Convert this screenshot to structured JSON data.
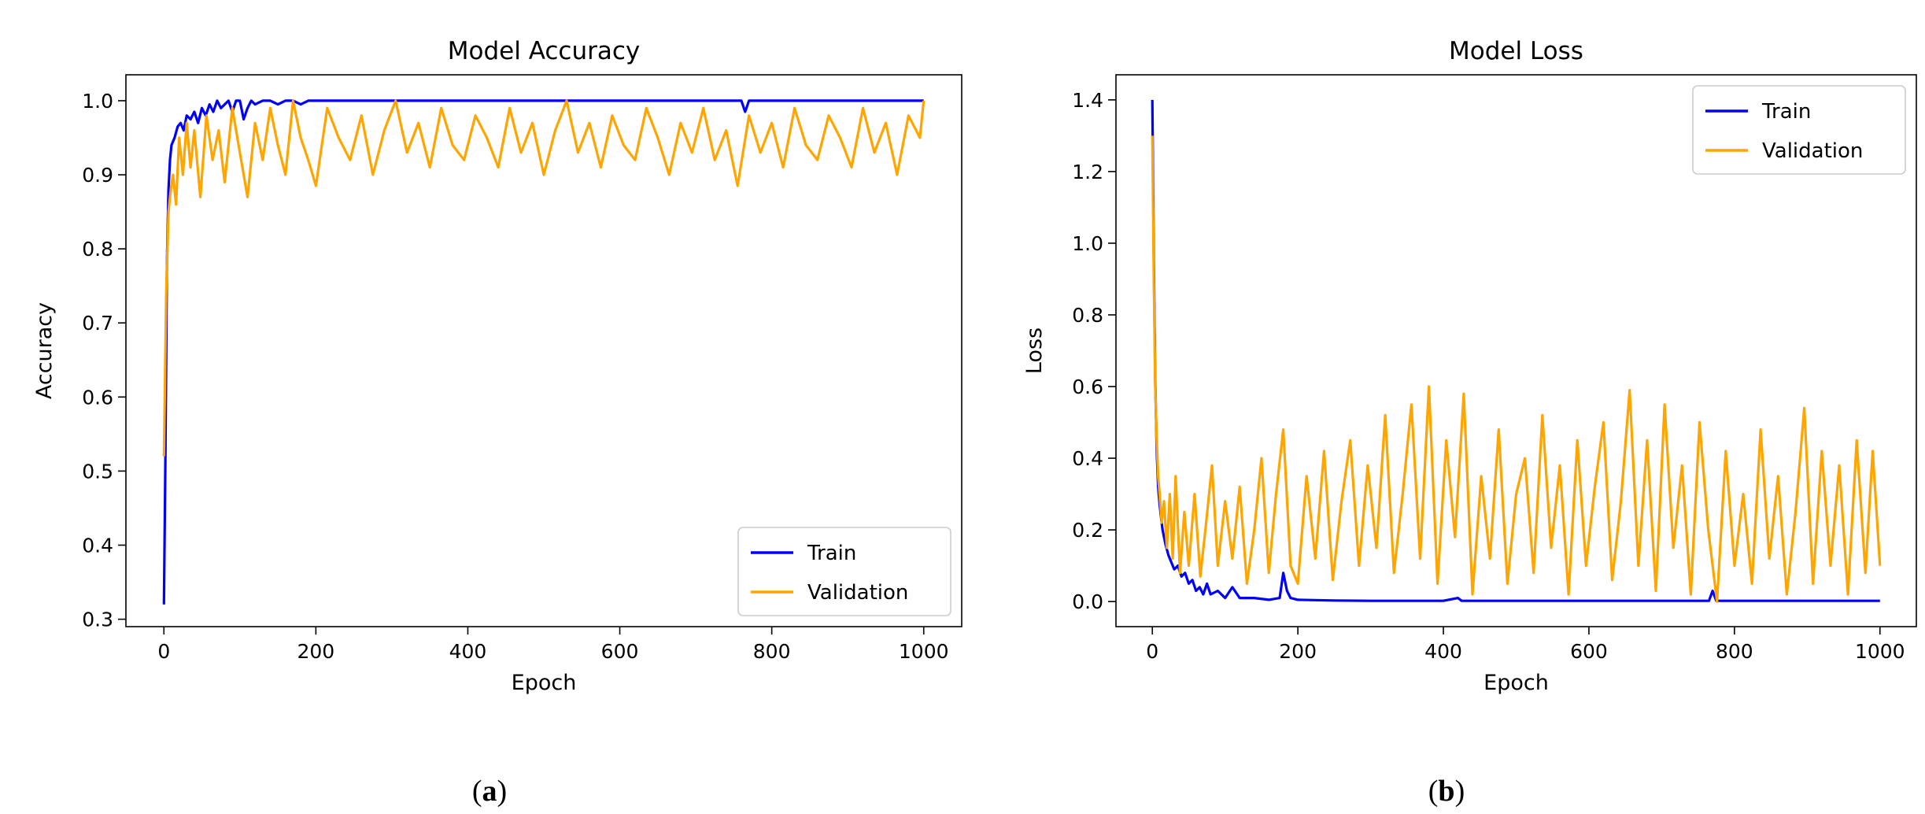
{
  "figure": {
    "caption_a": {
      "open": "(",
      "letter": "a",
      "close": ")"
    },
    "caption_b": {
      "open": "(",
      "letter": "b",
      "close": ")"
    }
  },
  "chart_data": [
    {
      "type": "line",
      "title": "Model Accuracy",
      "xlabel": "Epoch",
      "ylabel": "Accuracy",
      "xlim": [
        -50,
        1050
      ],
      "ylim": [
        0.29,
        1.035
      ],
      "xticks": [
        0,
        200,
        400,
        600,
        800,
        1000
      ],
      "xtick_labels": [
        "0",
        "200",
        "400",
        "600",
        "800",
        "1000"
      ],
      "yticks": [
        0.3,
        0.4,
        0.5,
        0.6,
        0.7,
        0.8,
        0.9,
        1.0
      ],
      "ytick_labels": [
        "0.3",
        "0.4",
        "0.5",
        "0.6",
        "0.7",
        "0.8",
        "0.9",
        "1.0"
      ],
      "grid": false,
      "legend": "lower-right",
      "colors": {
        "Train": "#0000ff",
        "Validation": "#ffa500"
      },
      "series": [
        {
          "name": "Train",
          "x": [
            0,
            2,
            4,
            6,
            8,
            10,
            14,
            18,
            22,
            26,
            30,
            35,
            40,
            45,
            50,
            55,
            60,
            65,
            70,
            75,
            80,
            85,
            90,
            95,
            100,
            105,
            110,
            115,
            120,
            130,
            140,
            150,
            160,
            170,
            180,
            190,
            200,
            230,
            260,
            300,
            400,
            500,
            600,
            760,
            765,
            770,
            775,
            800,
            900,
            1000
          ],
          "values": [
            0.32,
            0.52,
            0.78,
            0.88,
            0.92,
            0.94,
            0.95,
            0.965,
            0.97,
            0.96,
            0.98,
            0.975,
            0.985,
            0.97,
            0.99,
            0.98,
            0.995,
            0.985,
            1.0,
            0.99,
            0.995,
            1.0,
            0.985,
            1.0,
            1.0,
            0.975,
            0.99,
            1.0,
            0.995,
            1.0,
            1.0,
            0.995,
            1.0,
            1.0,
            0.995,
            1.0,
            1.0,
            1.0,
            1.0,
            1.0,
            1.0,
            1.0,
            1.0,
            1.0,
            0.985,
            1.0,
            1.0,
            1.0,
            1.0,
            1.0
          ]
        },
        {
          "name": "Validation",
          "x": [
            0,
            3,
            6,
            9,
            12,
            16,
            20,
            25,
            30,
            35,
            40,
            48,
            56,
            64,
            72,
            80,
            90,
            100,
            110,
            120,
            130,
            140,
            150,
            160,
            170,
            180,
            190,
            200,
            215,
            230,
            245,
            260,
            275,
            290,
            305,
            320,
            335,
            350,
            365,
            380,
            395,
            410,
            425,
            440,
            455,
            470,
            485,
            500,
            515,
            530,
            545,
            560,
            575,
            590,
            605,
            620,
            635,
            650,
            665,
            680,
            695,
            710,
            725,
            740,
            755,
            770,
            785,
            800,
            815,
            830,
            845,
            860,
            875,
            890,
            905,
            920,
            935,
            950,
            965,
            980,
            995,
            1000
          ],
          "values": [
            0.52,
            0.74,
            0.85,
            0.88,
            0.9,
            0.86,
            0.95,
            0.9,
            0.97,
            0.91,
            0.96,
            0.87,
            0.98,
            0.92,
            0.96,
            0.89,
            0.99,
            0.93,
            0.87,
            0.97,
            0.92,
            0.99,
            0.94,
            0.9,
            1.0,
            0.95,
            0.92,
            0.885,
            0.99,
            0.95,
            0.92,
            0.98,
            0.9,
            0.96,
            1.0,
            0.93,
            0.97,
            0.91,
            0.99,
            0.94,
            0.92,
            0.98,
            0.95,
            0.91,
            0.99,
            0.93,
            0.97,
            0.9,
            0.96,
            1.0,
            0.93,
            0.97,
            0.91,
            0.98,
            0.94,
            0.92,
            0.99,
            0.95,
            0.9,
            0.97,
            0.93,
            0.99,
            0.92,
            0.96,
            0.885,
            0.98,
            0.93,
            0.97,
            0.91,
            0.99,
            0.94,
            0.92,
            0.98,
            0.95,
            0.91,
            0.99,
            0.93,
            0.97,
            0.9,
            0.98,
            0.95,
            1.0
          ]
        }
      ]
    },
    {
      "type": "line",
      "title": "Model Loss",
      "xlabel": "Epoch",
      "ylabel": "Loss",
      "xlim": [
        -50,
        1050
      ],
      "ylim": [
        -0.07,
        1.47
      ],
      "xticks": [
        0,
        200,
        400,
        600,
        800,
        1000
      ],
      "xtick_labels": [
        "0",
        "200",
        "400",
        "600",
        "800",
        "1000"
      ],
      "yticks": [
        0.0,
        0.2,
        0.4,
        0.6,
        0.8,
        1.0,
        1.2,
        1.4
      ],
      "ytick_labels": [
        "0.0",
        "0.2",
        "0.4",
        "0.6",
        "0.8",
        "1.0",
        "1.2",
        "1.4"
      ],
      "grid": false,
      "legend": "upper-right",
      "colors": {
        "Train": "#0000ff",
        "Validation": "#ffa500"
      },
      "series": [
        {
          "name": "Train",
          "x": [
            0,
            2,
            4,
            6,
            8,
            10,
            14,
            18,
            22,
            26,
            30,
            35,
            40,
            45,
            50,
            55,
            60,
            65,
            70,
            75,
            80,
            90,
            100,
            110,
            120,
            140,
            160,
            175,
            180,
            185,
            190,
            200,
            250,
            300,
            400,
            420,
            425,
            430,
            500,
            600,
            700,
            765,
            770,
            775,
            800,
            900,
            1000
          ],
          "values": [
            1.4,
            0.95,
            0.62,
            0.42,
            0.32,
            0.27,
            0.2,
            0.16,
            0.13,
            0.11,
            0.09,
            0.1,
            0.07,
            0.08,
            0.05,
            0.06,
            0.03,
            0.04,
            0.02,
            0.05,
            0.02,
            0.03,
            0.01,
            0.04,
            0.01,
            0.01,
            0.005,
            0.01,
            0.08,
            0.03,
            0.01,
            0.005,
            0.003,
            0.002,
            0.002,
            0.01,
            0.002,
            0.002,
            0.002,
            0.002,
            0.002,
            0.002,
            0.03,
            0.002,
            0.002,
            0.002,
            0.002
          ]
        },
        {
          "name": "Validation",
          "x": [
            0,
            2,
            4,
            6,
            8,
            10,
            13,
            16,
            20,
            24,
            28,
            32,
            38,
            44,
            50,
            58,
            66,
            74,
            82,
            90,
            100,
            110,
            120,
            130,
            140,
            150,
            160,
            170,
            180,
            190,
            200,
            212,
            224,
            236,
            248,
            260,
            272,
            284,
            296,
            308,
            320,
            332,
            344,
            356,
            368,
            380,
            392,
            404,
            416,
            428,
            440,
            452,
            464,
            476,
            488,
            500,
            512,
            524,
            536,
            548,
            560,
            572,
            584,
            596,
            608,
            620,
            632,
            644,
            656,
            668,
            680,
            692,
            704,
            716,
            728,
            740,
            752,
            764,
            776,
            788,
            800,
            812,
            824,
            836,
            848,
            860,
            872,
            884,
            896,
            908,
            920,
            932,
            944,
            956,
            968,
            980,
            990,
            1000
          ],
          "values": [
            1.3,
            0.9,
            0.6,
            0.45,
            0.35,
            0.3,
            0.22,
            0.28,
            0.15,
            0.3,
            0.12,
            0.35,
            0.08,
            0.25,
            0.1,
            0.3,
            0.07,
            0.22,
            0.38,
            0.1,
            0.28,
            0.12,
            0.32,
            0.05,
            0.2,
            0.4,
            0.08,
            0.3,
            0.48,
            0.1,
            0.05,
            0.35,
            0.12,
            0.42,
            0.06,
            0.28,
            0.45,
            0.1,
            0.38,
            0.15,
            0.52,
            0.08,
            0.3,
            0.55,
            0.12,
            0.6,
            0.05,
            0.45,
            0.18,
            0.58,
            0.02,
            0.35,
            0.12,
            0.48,
            0.05,
            0.3,
            0.4,
            0.08,
            0.52,
            0.15,
            0.38,
            0.02,
            0.45,
            0.1,
            0.32,
            0.5,
            0.06,
            0.28,
            0.59,
            0.1,
            0.45,
            0.03,
            0.55,
            0.15,
            0.38,
            0.02,
            0.5,
            0.2,
            0.0,
            0.42,
            0.1,
            0.3,
            0.05,
            0.48,
            0.12,
            0.35,
            0.02,
            0.25,
            0.54,
            0.05,
            0.42,
            0.1,
            0.38,
            0.02,
            0.45,
            0.08,
            0.42,
            0.1
          ]
        }
      ]
    }
  ]
}
